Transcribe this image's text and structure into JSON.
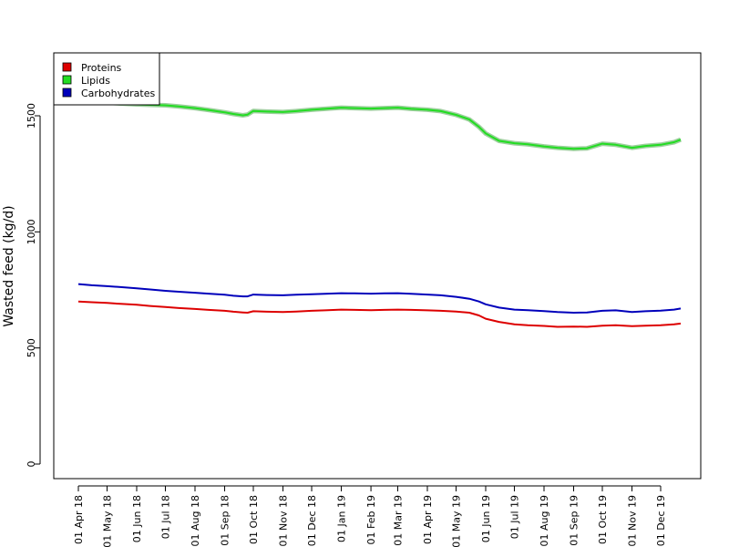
{
  "chart_data": {
    "type": "line",
    "title": "",
    "xlabel": "",
    "ylabel": "Wasted feed (kg/d)",
    "ylim": [
      0,
      1750
    ],
    "yticks": [
      0,
      500,
      1000,
      1500
    ],
    "ytick_labels": [
      "0",
      "500",
      "1000",
      "1500"
    ],
    "xlim": [
      "2018-03-17",
      "2019-12-30"
    ],
    "xticks": [
      "2018-04-01",
      "2018-05-01",
      "2018-06-01",
      "2018-07-01",
      "2018-08-01",
      "2018-09-01",
      "2018-10-01",
      "2018-11-01",
      "2018-12-01",
      "2019-01-01",
      "2019-02-01",
      "2019-03-01",
      "2019-04-01",
      "2019-05-01",
      "2019-06-01",
      "2019-07-01",
      "2019-08-01",
      "2019-09-01",
      "2019-10-01",
      "2019-11-01",
      "2019-12-01"
    ],
    "xtick_labels": [
      "01 Apr 18",
      "01 May 18",
      "01 Jun 18",
      "01 Jul 18",
      "01 Aug 18",
      "01 Sep 18",
      "01 Oct 18",
      "01 Nov 18",
      "01 Dec 18",
      "01 Jan 19",
      "01 Feb 19",
      "01 Mar 19",
      "01 Apr 19",
      "01 May 19",
      "01 Jun 19",
      "01 Jul 19",
      "01 Aug 19",
      "01 Sep 19",
      "01 Oct 19",
      "01 Nov 19",
      "01 Dec 19"
    ],
    "grid": false,
    "legend_position": "top-left",
    "x": [
      "2018-04-01",
      "2018-04-15",
      "2018-05-01",
      "2018-05-15",
      "2018-06-01",
      "2018-06-15",
      "2018-07-01",
      "2018-07-15",
      "2018-08-01",
      "2018-08-15",
      "2018-09-01",
      "2018-09-10",
      "2018-09-20",
      "2018-09-25",
      "2018-10-01",
      "2018-10-15",
      "2018-11-01",
      "2018-11-15",
      "2018-12-01",
      "2018-12-15",
      "2019-01-01",
      "2019-01-15",
      "2019-02-01",
      "2019-02-15",
      "2019-03-01",
      "2019-03-15",
      "2019-04-01",
      "2019-04-15",
      "2019-05-01",
      "2019-05-15",
      "2019-05-25",
      "2019-06-01",
      "2019-06-15",
      "2019-07-01",
      "2019-07-15",
      "2019-08-01",
      "2019-08-15",
      "2019-09-01",
      "2019-09-15",
      "2019-10-01",
      "2019-10-15",
      "2019-11-01",
      "2019-11-15",
      "2019-12-01",
      "2019-12-15",
      "2019-12-22"
    ],
    "series": [
      {
        "name": "Proteins",
        "color": "#dd0000",
        "values": [
          700,
          697,
          694,
          690,
          686,
          681,
          676,
          672,
          668,
          664,
          660,
          656,
          653,
          652,
          658,
          656,
          655,
          657,
          660,
          662,
          665,
          664,
          663,
          664,
          665,
          664,
          662,
          660,
          657,
          652,
          640,
          626,
          612,
          602,
          598,
          595,
          591,
          592,
          591,
          596,
          598,
          594,
          596,
          598,
          602,
          605
        ]
      },
      {
        "name": "Lipids",
        "color": "#22dd22",
        "values": [
          1570,
          1563,
          1557,
          1553,
          1549,
          1547,
          1545,
          1540,
          1533,
          1525,
          1515,
          1508,
          1502,
          1505,
          1521,
          1518,
          1516,
          1520,
          1526,
          1530,
          1535,
          1533,
          1531,
          1533,
          1535,
          1530,
          1526,
          1520,
          1504,
          1484,
          1452,
          1424,
          1392,
          1382,
          1377,
          1368,
          1362,
          1358,
          1360,
          1380,
          1375,
          1362,
          1370,
          1375,
          1386,
          1397
        ]
      },
      {
        "name": "Carbohydrates",
        "color": "#0000bb",
        "values": [
          775,
          770,
          766,
          762,
          757,
          752,
          746,
          742,
          738,
          734,
          729,
          725,
          722,
          722,
          730,
          728,
          727,
          729,
          731,
          733,
          736,
          735,
          734,
          735,
          736,
          733,
          730,
          727,
          720,
          712,
          700,
          688,
          674,
          665,
          663,
          659,
          655,
          652,
          653,
          660,
          662,
          655,
          658,
          661,
          665,
          670
        ]
      }
    ]
  }
}
